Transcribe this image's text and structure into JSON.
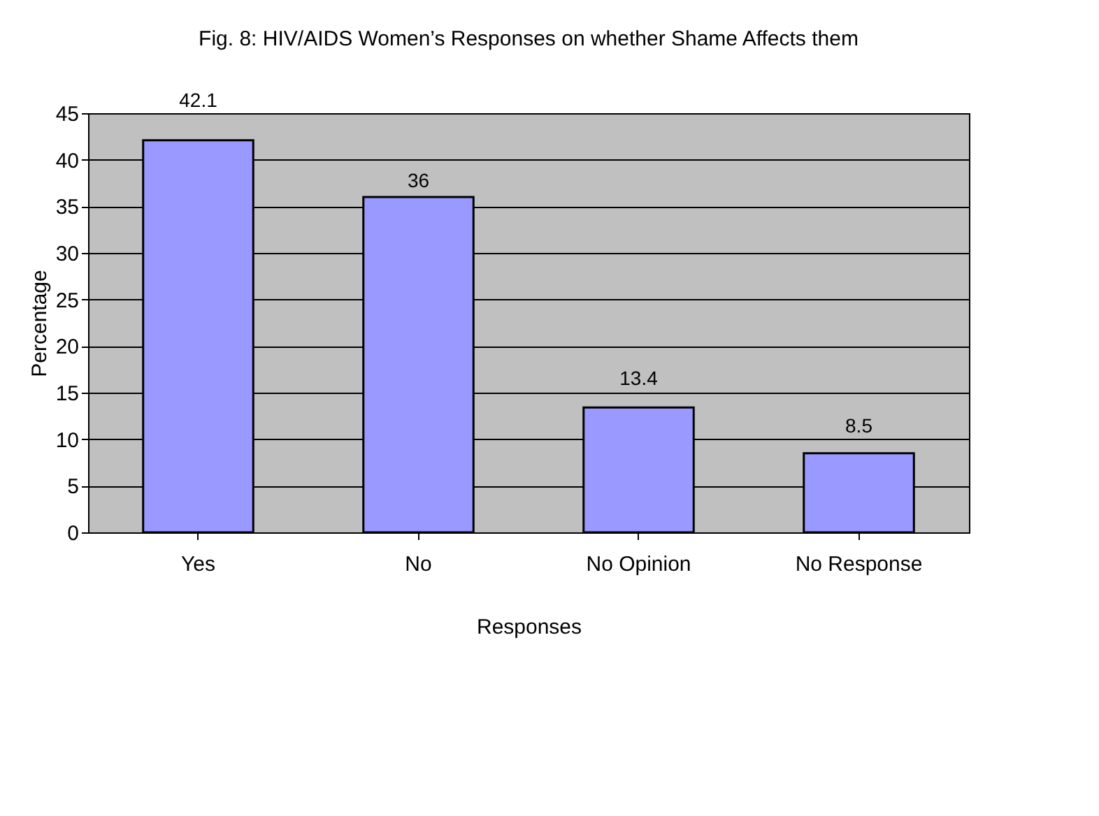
{
  "chart_data": {
    "type": "bar",
    "title": "Fig. 8: HIV/AIDS Women’s Responses on whether Shame Affects them",
    "xlabel": "Responses",
    "ylabel": "Percentage",
    "categories": [
      "Yes",
      "No",
      "No Opinion",
      "No Response"
    ],
    "values": [
      42.1,
      36,
      13.4,
      8.5
    ],
    "color": "#9999ff",
    "ylim": [
      0,
      45
    ],
    "yticks": [
      0,
      5,
      10,
      15,
      20,
      25,
      30,
      35,
      40,
      45
    ],
    "grid": "y",
    "data_labels": true
  }
}
